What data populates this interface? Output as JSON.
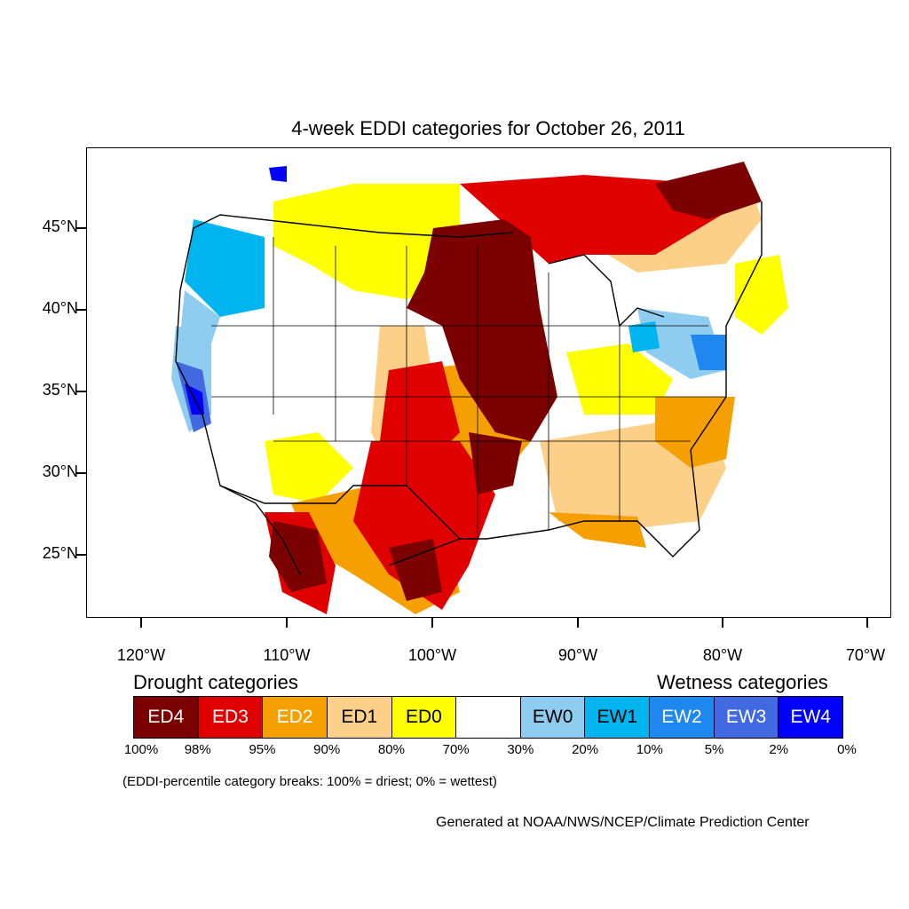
{
  "title": "4-week EDDI categories for October 26, 2011",
  "lat_labels": [
    "45°N",
    "40°N",
    "35°N",
    "30°N",
    "25°N"
  ],
  "lon_labels": [
    "120°W",
    "110°W",
    "100°W",
    "90°W",
    "80°W",
    "70°W"
  ],
  "legend": {
    "drought_heading": "Drought categories",
    "wetness_heading": "Wetness categories",
    "categories": [
      {
        "label": "ED4",
        "color": "#7b0000",
        "text_color": "#ffffff"
      },
      {
        "label": "ED3",
        "color": "#e10000",
        "text_color": "#ffffff"
      },
      {
        "label": "ED2",
        "color": "#f5a000",
        "text_color": "#ffffff"
      },
      {
        "label": "ED1",
        "color": "#fdd08a",
        "text_color": "#000000"
      },
      {
        "label": "ED0",
        "color": "#ffff00",
        "text_color": "#000000"
      },
      {
        "label": "",
        "color": "#ffffff",
        "text_color": "#000000"
      },
      {
        "label": "EW0",
        "color": "#8fcdf0",
        "text_color": "#000000"
      },
      {
        "label": "EW1",
        "color": "#00b4f0",
        "text_color": "#000000"
      },
      {
        "label": "EW2",
        "color": "#1e87f0",
        "text_color": "#ffffff"
      },
      {
        "label": "EW3",
        "color": "#4169e1",
        "text_color": "#ffffff"
      },
      {
        "label": "EW4",
        "color": "#0000ff",
        "text_color": "#ffffff"
      }
    ],
    "breaks": [
      "100%",
      "98%",
      "95%",
      "90%",
      "80%",
      "70%",
      "30%",
      "20%",
      "10%",
      "5%",
      "2%",
      "0%"
    ]
  },
  "note": "(EDDI-percentile category breaks: 100% = driest; 0% = wettest)",
  "credit": "Generated at NOAA/NWS/NCEP/Climate Prediction Center"
}
